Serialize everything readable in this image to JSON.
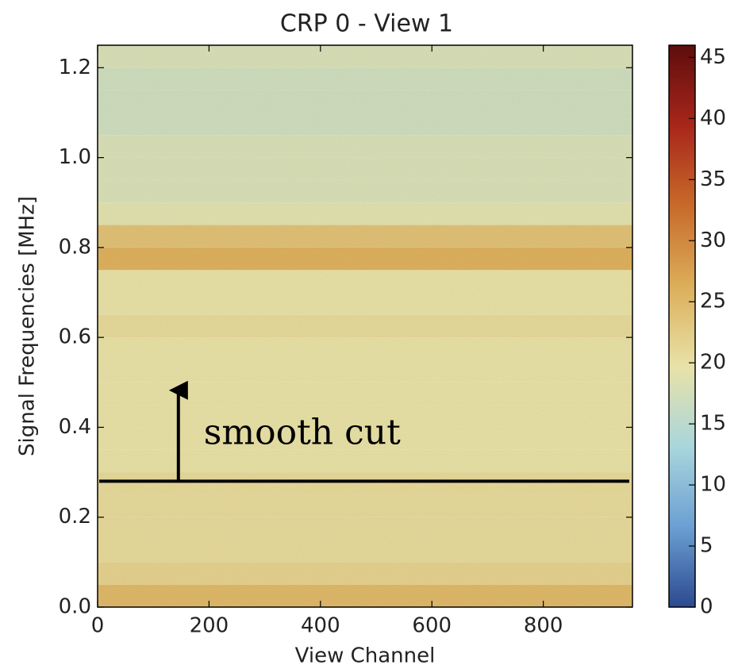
{
  "chart_data": {
    "type": "heatmap",
    "title": "CRP 0 - View 1",
    "x_label": "View Channel",
    "y_label": "Signal Frequencies [MHz]",
    "xlim": [
      0,
      960
    ],
    "xticks": [
      0,
      200,
      400,
      600,
      800
    ],
    "ylim": [
      0,
      1.25
    ],
    "yticks": [
      {
        "value": 0,
        "label": "0.0"
      },
      0.2,
      0.4,
      0.6,
      0.8,
      {
        "value": 1,
        "label": "1.0"
      },
      1.2
    ],
    "y_bins": [
      0,
      0.05,
      0.1,
      0.15,
      0.2,
      0.25,
      0.3,
      0.35,
      0.4,
      0.45,
      0.5,
      0.55,
      0.6,
      0.65,
      0.7,
      0.75,
      0.8,
      0.85,
      0.9,
      0.95,
      1.0,
      1.05,
      1.1,
      1.15,
      1.2,
      1.25
    ],
    "values": [
      25,
      22,
      21,
      21,
      21,
      21,
      20,
      20,
      20,
      20,
      20,
      20,
      21,
      20,
      20,
      26,
      24,
      19,
      18,
      18,
      18,
      17,
      17,
      17,
      18
    ],
    "clim": [
      0,
      46
    ],
    "colorbar_ticks": [
      0,
      5,
      10,
      15,
      20,
      25,
      30,
      35,
      40,
      45
    ],
    "colormap": [
      "#2b4a8f",
      "#6c9fd3",
      "#a9d6dc",
      "#e8e2a8",
      "#dcae5a",
      "#c86a2a",
      "#a8261a",
      "#5e0d0d"
    ],
    "annotation": {
      "text": "smooth cut",
      "line_y": 0.28,
      "arrow_x": 145,
      "arrow_to_y": 0.5
    }
  }
}
